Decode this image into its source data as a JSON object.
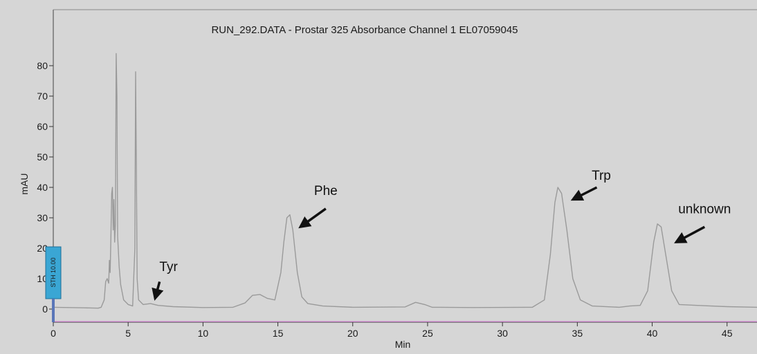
{
  "chart_data": {
    "type": "line",
    "title": "RUN_292.DATA - Prostar 325 Absorbance Channel 1 EL07059045",
    "xlabel": "Min",
    "ylabel": "mAU",
    "xlim": [
      0,
      47
    ],
    "ylim": [
      -5,
      88
    ],
    "x_ticks": [
      0,
      5,
      10,
      15,
      20,
      25,
      30,
      35,
      40,
      45
    ],
    "y_ticks": [
      0,
      10,
      20,
      30,
      40,
      50,
      60,
      70,
      80
    ],
    "grid": false,
    "colors": {
      "trace": "#9a9a9a",
      "baseline": "#d898d8",
      "marker": "#3aa6d4",
      "background": "#d6d6d6"
    },
    "series": [
      {
        "values_note": "",
        "points": [
          [
            0,
            0.6
          ],
          [
            1,
            0.5
          ],
          [
            2,
            0.4
          ],
          [
            3,
            0.3
          ],
          [
            3.2,
            0.6
          ],
          [
            3.4,
            3
          ],
          [
            3.5,
            9
          ],
          [
            3.6,
            10
          ],
          [
            3.7,
            8.5
          ],
          [
            3.75,
            16
          ],
          [
            3.8,
            12
          ],
          [
            3.85,
            24
          ],
          [
            3.9,
            38
          ],
          [
            3.95,
            40
          ],
          [
            4.0,
            26
          ],
          [
            4.05,
            36
          ],
          [
            4.1,
            22
          ],
          [
            4.15,
            28
          ],
          [
            4.2,
            84
          ],
          [
            4.25,
            70
          ],
          [
            4.3,
            24
          ],
          [
            4.4,
            14
          ],
          [
            4.5,
            8
          ],
          [
            4.7,
            3
          ],
          [
            5.0,
            1.5
          ],
          [
            5.3,
            1.0
          ],
          [
            5.45,
            20
          ],
          [
            5.5,
            78
          ],
          [
            5.55,
            45
          ],
          [
            5.6,
            10
          ],
          [
            5.7,
            3
          ],
          [
            6.0,
            1.5
          ],
          [
            6.5,
            1.8
          ],
          [
            7.0,
            1.2
          ],
          [
            8,
            0.8
          ],
          [
            10,
            0.5
          ],
          [
            12,
            0.6
          ],
          [
            12.8,
            2.0
          ],
          [
            13.3,
            4.5
          ],
          [
            13.8,
            4.8
          ],
          [
            14.3,
            3.5
          ],
          [
            14.8,
            3.0
          ],
          [
            15.2,
            12
          ],
          [
            15.4,
            22
          ],
          [
            15.6,
            30
          ],
          [
            15.8,
            31
          ],
          [
            16.0,
            26
          ],
          [
            16.3,
            12
          ],
          [
            16.6,
            4
          ],
          [
            17,
            1.8
          ],
          [
            18,
            1.0
          ],
          [
            20,
            0.6
          ],
          [
            23.5,
            0.7
          ],
          [
            24.2,
            2.2
          ],
          [
            24.8,
            1.5
          ],
          [
            25.3,
            0.6
          ],
          [
            28,
            0.5
          ],
          [
            32,
            0.6
          ],
          [
            32.8,
            3
          ],
          [
            33.2,
            18
          ],
          [
            33.5,
            35
          ],
          [
            33.7,
            40
          ],
          [
            33.95,
            38
          ],
          [
            34.3,
            26
          ],
          [
            34.7,
            10
          ],
          [
            35.2,
            3
          ],
          [
            36,
            1
          ],
          [
            37.8,
            0.6
          ],
          [
            38.5,
            1.0
          ],
          [
            39.2,
            1.2
          ],
          [
            39.7,
            6
          ],
          [
            40.1,
            22
          ],
          [
            40.35,
            28
          ],
          [
            40.6,
            27
          ],
          [
            40.9,
            18
          ],
          [
            41.3,
            6
          ],
          [
            41.8,
            1.5
          ],
          [
            43,
            1.2
          ],
          [
            45,
            0.8
          ],
          [
            47,
            0.6
          ]
        ]
      }
    ],
    "annotations": [
      {
        "text": "Tyr",
        "label_x": 7.7,
        "label_y": 12.5,
        "arrow_from": [
          7.1,
          9
        ],
        "arrow_to": [
          6.8,
          3.5
        ]
      },
      {
        "text": "Phe",
        "label_x": 18.2,
        "label_y": 37.5,
        "arrow_from": [
          18.2,
          33
        ],
        "arrow_to": [
          16.5,
          27
        ]
      },
      {
        "text": "Trp",
        "label_x": 36.6,
        "label_y": 42.5,
        "arrow_from": [
          36.3,
          40
        ],
        "arrow_to": [
          34.7,
          36
        ]
      },
      {
        "text": "unknown",
        "label_x": 43.5,
        "label_y": 31.5,
        "arrow_from": [
          43.5,
          27
        ],
        "arrow_to": [
          41.6,
          22
        ]
      }
    ],
    "event_marker": {
      "text": "STH 10.00",
      "x": 0.0
    }
  }
}
